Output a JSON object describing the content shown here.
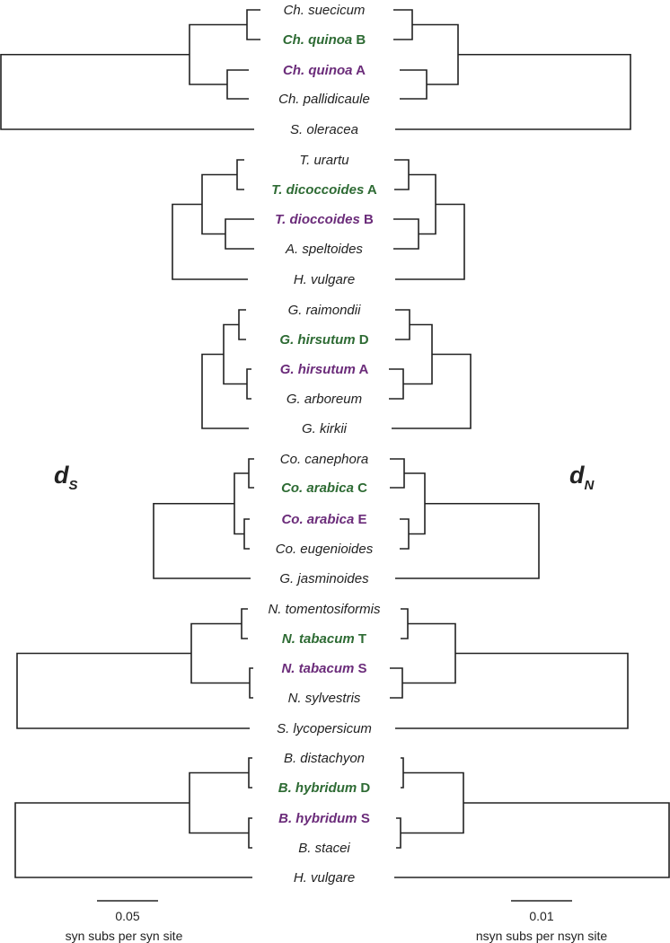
{
  "colors": {
    "text": "#222222",
    "subgenome_1": "#2e6b34",
    "subgenome_2": "#6b2c7a"
  },
  "panel_labels": {
    "left": {
      "main": "d",
      "sub": "S"
    },
    "right": {
      "main": "d",
      "sub": "N"
    }
  },
  "scale_bars": {
    "left": {
      "value": "0.05",
      "unit": "syn subs per syn site"
    },
    "right": {
      "value": "0.01",
      "unit": "nsyn subs per nsyn site"
    }
  },
  "groups": [
    {
      "taxa": [
        {
          "name": "Ch. suecicum",
          "suffix": "",
          "highlight": ""
        },
        {
          "name": "Ch. quinoa",
          "suffix": "B",
          "highlight": "subgenome_1"
        },
        {
          "name": "Ch. quinoa",
          "suffix": "A",
          "highlight": "subgenome_2"
        },
        {
          "name": "Ch. pallidicaule",
          "suffix": "",
          "highlight": ""
        },
        {
          "name": "S. oleracea",
          "suffix": "",
          "highlight": ""
        }
      ]
    },
    {
      "taxa": [
        {
          "name": "T. urartu",
          "suffix": "",
          "highlight": ""
        },
        {
          "name": "T. dicoccoides",
          "suffix": "A",
          "highlight": "subgenome_1"
        },
        {
          "name": "T. dioccoides",
          "suffix": "B",
          "highlight": "subgenome_2"
        },
        {
          "name": "A. speltoides",
          "suffix": "",
          "highlight": ""
        },
        {
          "name": "H. vulgare",
          "suffix": "",
          "highlight": ""
        }
      ]
    },
    {
      "taxa": [
        {
          "name": "G. raimondii",
          "suffix": "",
          "highlight": ""
        },
        {
          "name": "G. hirsutum",
          "suffix": "D",
          "highlight": "subgenome_1"
        },
        {
          "name": "G. hirsutum",
          "suffix": "A",
          "highlight": "subgenome_2"
        },
        {
          "name": "G. arboreum",
          "suffix": "",
          "highlight": ""
        },
        {
          "name": "G. kirkii",
          "suffix": "",
          "highlight": ""
        }
      ]
    },
    {
      "taxa": [
        {
          "name": "Co. canephora",
          "suffix": "",
          "highlight": ""
        },
        {
          "name": "Co. arabica",
          "suffix": "C",
          "highlight": "subgenome_1"
        },
        {
          "name": "Co. arabica",
          "suffix": "E",
          "highlight": "subgenome_2"
        },
        {
          "name": "Co. eugenioides",
          "suffix": "",
          "highlight": ""
        },
        {
          "name": "G. jasminoides",
          "suffix": "",
          "highlight": ""
        }
      ]
    },
    {
      "taxa": [
        {
          "name": "N. tomentosiformis",
          "suffix": "",
          "highlight": ""
        },
        {
          "name": "N. tabacum",
          "suffix": "T",
          "highlight": "subgenome_1"
        },
        {
          "name": "N. tabacum",
          "suffix": "S",
          "highlight": "subgenome_2"
        },
        {
          "name": "N. sylvestris",
          "suffix": "",
          "highlight": ""
        },
        {
          "name": "S. lycopersicum",
          "suffix": "",
          "highlight": ""
        }
      ]
    },
    {
      "taxa": [
        {
          "name": "B. distachyon",
          "suffix": "",
          "highlight": ""
        },
        {
          "name": "B. hybridum",
          "suffix": "D",
          "highlight": "subgenome_1"
        },
        {
          "name": "B. hybridum",
          "suffix": "S",
          "highlight": "subgenome_2"
        },
        {
          "name": "B. stacei",
          "suffix": "",
          "highlight": ""
        },
        {
          "name": "H. vulgare",
          "suffix": "",
          "highlight": ""
        }
      ]
    }
  ]
}
